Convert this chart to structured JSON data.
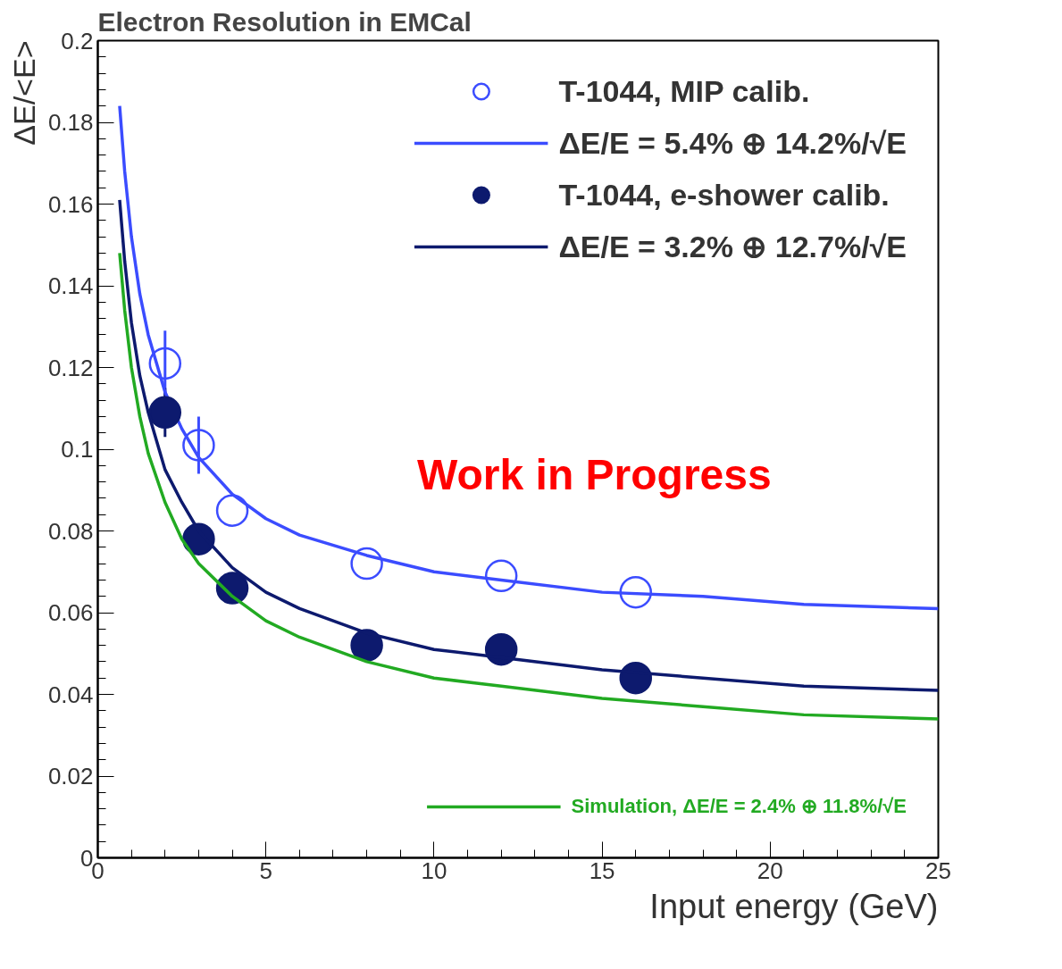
{
  "chart_data": {
    "type": "line",
    "title": "Electron Resolution in EMCal",
    "xlabel": "Input energy (GeV)",
    "ylabel": "ΔE/<E>",
    "xlim": [
      0,
      25
    ],
    "ylim": [
      0,
      0.2
    ],
    "xticks": [
      0,
      5,
      10,
      15,
      20,
      25
    ],
    "yticks": [
      0,
      0.02,
      0.04,
      0.06,
      0.08,
      0.1,
      0.12,
      0.14,
      0.16,
      0.18,
      0.2
    ],
    "grid": false,
    "legend": "top right",
    "marker": "circle",
    "annotations": [
      "Work in Progress"
    ],
    "series": [
      {
        "name": "T-1044, MIP calib.",
        "type": "scatter",
        "color": "#3b4cff",
        "x": [
          2,
          3,
          4,
          8,
          12,
          16
        ],
        "values": [
          0.121,
          0.101,
          0.085,
          0.072,
          0.069,
          0.065
        ],
        "errors": [
          0.008,
          0.007,
          null,
          null,
          null,
          null
        ]
      },
      {
        "name": "ΔE/E = 5.4% ⊕ 14.2%/√E",
        "marker": "none",
        "color": "#3b4cff",
        "x": [
          0.65,
          0.8,
          1,
          1.25,
          1.5,
          2,
          2.5,
          3,
          4,
          5,
          6,
          8,
          10,
          12,
          15,
          18,
          21,
          25
        ],
        "values": [
          0.184,
          0.168,
          0.152,
          0.138,
          0.128,
          0.114,
          0.105,
          0.098,
          0.089,
          0.083,
          0.079,
          0.074,
          0.07,
          0.068,
          0.065,
          0.064,
          0.062,
          0.061
        ]
      },
      {
        "name": "T-1044, e-shower calib.",
        "type": "scatter",
        "color": "#0d1a6e",
        "x": [
          2,
          3,
          4,
          8,
          12,
          16
        ],
        "values": [
          0.109,
          0.078,
          0.066,
          0.052,
          0.051,
          0.044
        ],
        "errors": [
          0.006,
          null,
          null,
          null,
          null,
          null
        ]
      },
      {
        "name": "ΔE/E = 3.2% ⊕ 12.7%/√E",
        "marker": "none",
        "color": "#0d1a6e",
        "x": [
          0.65,
          0.8,
          1,
          1.25,
          1.5,
          2,
          2.5,
          3,
          4,
          5,
          6,
          8,
          10,
          12,
          15,
          18,
          21,
          25
        ],
        "values": [
          0.161,
          0.146,
          0.131,
          0.118,
          0.109,
          0.095,
          0.087,
          0.08,
          0.071,
          0.065,
          0.061,
          0.055,
          0.051,
          0.049,
          0.046,
          0.044,
          0.042,
          0.041
        ]
      },
      {
        "name": "Simulation, ΔE/E = 2.4% ⊕ 11.8%/√E",
        "marker": "none",
        "color": "#22aa22",
        "x": [
          0.65,
          0.8,
          1,
          1.25,
          1.5,
          2,
          2.5,
          3,
          4,
          5,
          6,
          8,
          10,
          12,
          15,
          18,
          21,
          25
        ],
        "values": [
          0.148,
          0.134,
          0.12,
          0.108,
          0.099,
          0.087,
          0.078,
          0.072,
          0.064,
          0.058,
          0.054,
          0.048,
          0.044,
          0.042,
          0.039,
          0.037,
          0.035,
          0.034
        ]
      }
    ]
  }
}
